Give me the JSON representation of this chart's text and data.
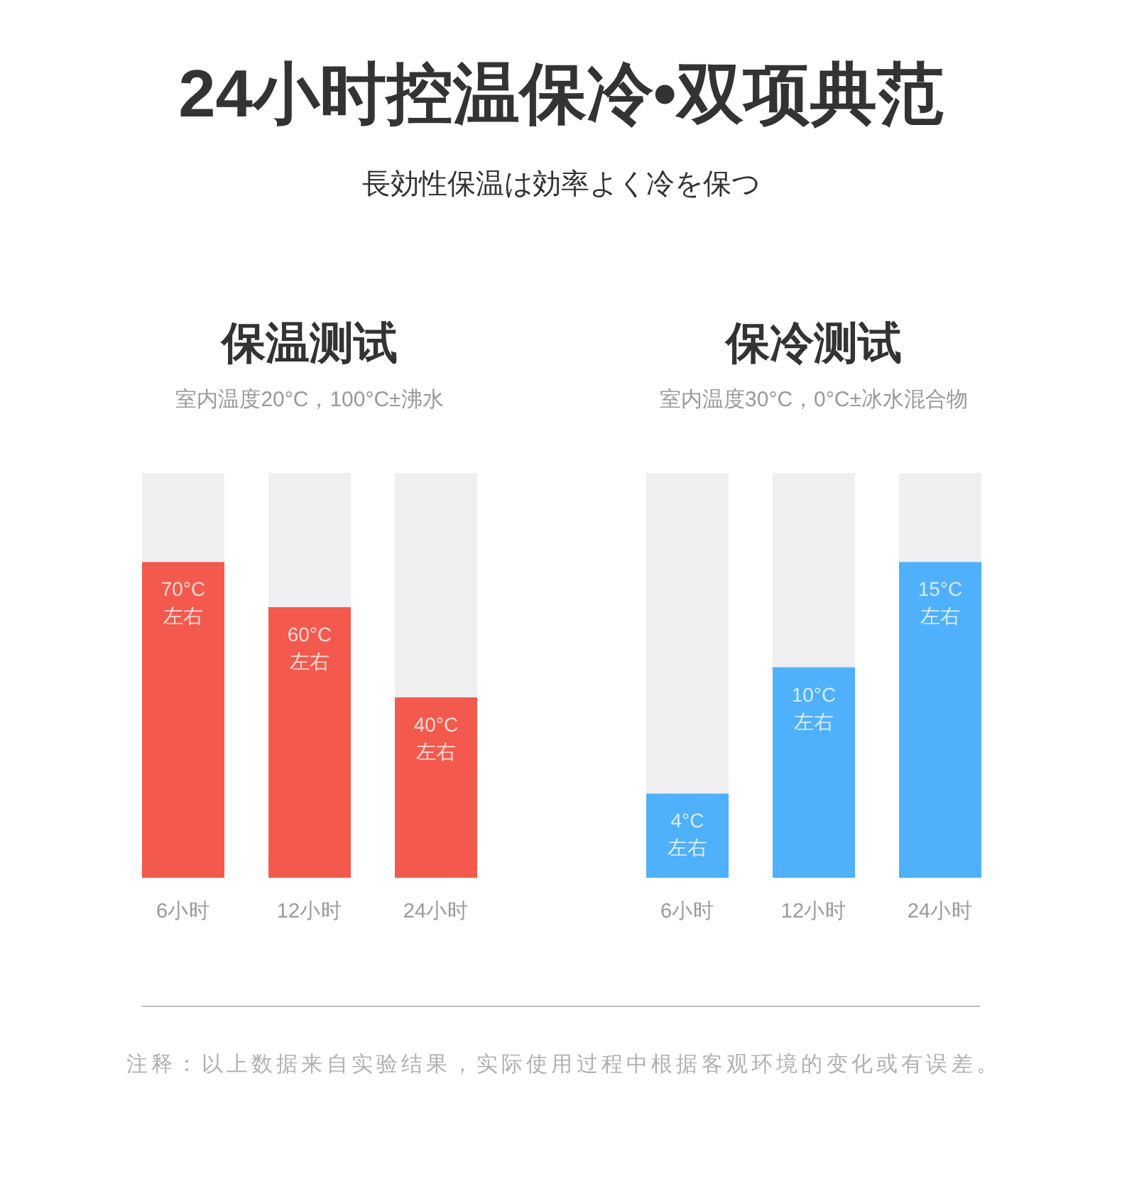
{
  "chart_data": [
    {
      "type": "other",
      "title": "24小时控温保冷•双项典范",
      "subtitle": "長効性保温は効率よく冷を保つ",
      "annotations": [
        "注释：以上数据来自实验结果，实际使用过程中根据客观环境的变化或有误差。"
      ]
    },
    {
      "type": "bar",
      "title": "保温测试",
      "subtitle": "室内温度20°C，100°C±沸水",
      "categories": [
        "6小时",
        "12小时",
        "24小时"
      ],
      "values": [
        70,
        60,
        40
      ],
      "color": "#f35a4d",
      "value_labels": [
        "70°C\n左右",
        "60°C\n左右",
        "40°C\n左右"
      ],
      "tick_labels": "x"
    },
    {
      "type": "bar",
      "title": "保冷测试",
      "subtitle": "室内温度30°C，0°C±冰水混合物",
      "categories": [
        "6小时",
        "12小时",
        "24小时"
      ],
      "values": [
        4,
        10,
        15
      ],
      "color": "#4fb0fc",
      "value_labels": [
        "4°C\n左右",
        "10°C\n左右",
        "15°C\n左右"
      ],
      "tick_labels": "x"
    }
  ]
}
